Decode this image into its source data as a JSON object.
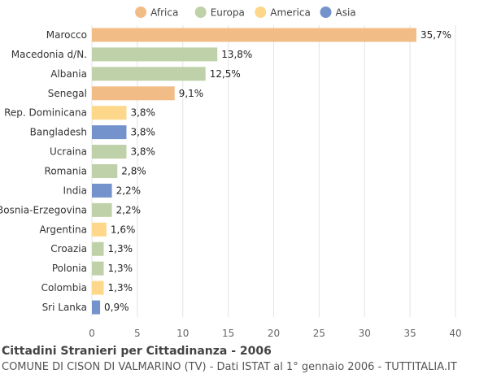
{
  "colors": {
    "Africa": "#f2bc86",
    "Europa": "#bfd1a9",
    "America": "#fdd88b",
    "Asia": "#7493cc"
  },
  "footer": {
    "title": "Cittadini Stranieri per Cittadinanza - 2006",
    "subtitle": "COMUNE DI CISON DI VALMARINO (TV) - Dati ISTAT al 1° gennaio 2006 - TUTTITALIA.IT"
  },
  "chart_data": {
    "type": "bar",
    "orientation": "horizontal",
    "legend": [
      "Africa",
      "Europa",
      "America",
      "Asia"
    ],
    "legend_position": "top",
    "categories": [
      "Marocco",
      "Macedonia d/N.",
      "Albania",
      "Senegal",
      "Rep. Dominicana",
      "Bangladesh",
      "Ucraina",
      "Romania",
      "India",
      "Bosnia-Erzegovina",
      "Argentina",
      "Croazia",
      "Polonia",
      "Colombia",
      "Sri Lanka"
    ],
    "values": [
      35.7,
      13.8,
      12.5,
      9.1,
      3.8,
      3.8,
      3.8,
      2.8,
      2.2,
      2.2,
      1.6,
      1.3,
      1.3,
      1.3,
      0.9
    ],
    "labels": [
      "35,7%",
      "13,8%",
      "12,5%",
      "9,1%",
      "3,8%",
      "3,8%",
      "3,8%",
      "2,8%",
      "2,2%",
      "2,2%",
      "1,6%",
      "1,3%",
      "1,3%",
      "1,3%",
      "0,9%"
    ],
    "groups": [
      "Africa",
      "Europa",
      "Europa",
      "Africa",
      "America",
      "Asia",
      "Europa",
      "Europa",
      "Asia",
      "Europa",
      "America",
      "Europa",
      "Europa",
      "America",
      "Asia"
    ],
    "xlim": [
      0,
      40
    ],
    "xticks": [
      0,
      5,
      10,
      15,
      20,
      25,
      30,
      35,
      40
    ],
    "grid": true
  }
}
